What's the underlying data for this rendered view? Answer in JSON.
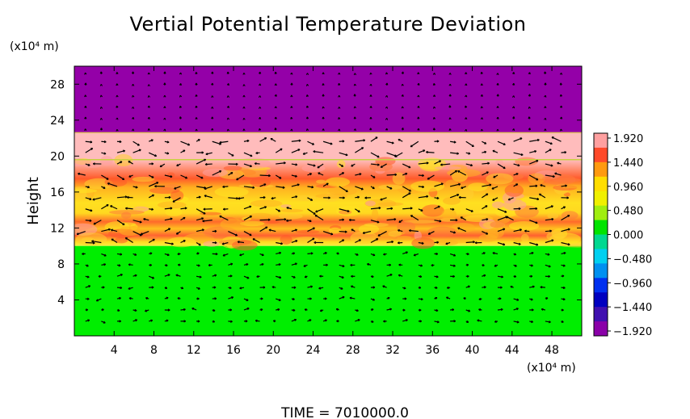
{
  "chart_data": {
    "type": "heatmap",
    "title": "Vertial Potential Temperature Deviation",
    "xlabel": "(x10⁴ m)",
    "ylabel": "Height",
    "y_unit_label": "(x10⁴ m)",
    "xlim": [
      0,
      51
    ],
    "ylim": [
      0,
      30
    ],
    "x_ticks": [
      "4",
      "8",
      "12",
      "16",
      "20",
      "24",
      "28",
      "32",
      "36",
      "40",
      "44",
      "48"
    ],
    "x_tick_values": [
      4,
      8,
      12,
      16,
      20,
      24,
      28,
      32,
      36,
      40,
      44,
      48
    ],
    "y_ticks": [
      "4",
      "8",
      "12",
      "16",
      "20",
      "24",
      "28"
    ],
    "y_tick_values": [
      4,
      8,
      12,
      16,
      20,
      24,
      28
    ],
    "colorbar": {
      "labels": [
        "1.920",
        "1.440",
        "0.960",
        "0.480",
        "0.000",
        "−0.480",
        "−0.960",
        "−1.440",
        "−1.920"
      ],
      "values": [
        1.92,
        1.44,
        0.96,
        0.48,
        0.0,
        -0.48,
        -0.96,
        -1.44,
        -1.92
      ],
      "colors": [
        "#ffa0a0",
        "#ff4a2a",
        "#ff9a10",
        "#ffdd00",
        "#f0f000",
        "#a0ee10",
        "#00e400",
        "#00d890",
        "#00d0f0",
        "#0090f0",
        "#0030f0",
        "#0000c0",
        "#4010b0",
        "#8a00a8"
      ]
    },
    "layers": [
      {
        "region": "upper layer",
        "y_range": [
          22.6,
          30
        ],
        "value": -1.92,
        "color": "#9400a8"
      },
      {
        "region": "pink band",
        "y_range": [
          19.6,
          22.6
        ],
        "value": 1.92,
        "color": "#ffbcbc"
      },
      {
        "region": "mixed band",
        "y_range": [
          10.0,
          19.6
        ],
        "value_range": [
          0.5,
          1.9
        ],
        "color": "#ffdd20"
      },
      {
        "region": "lower layer",
        "y_range": [
          0,
          10.0
        ],
        "value": 0.0,
        "color": "#00ee00"
      }
    ],
    "grid": false,
    "overlay": "velocity vector arrows"
  },
  "footer": {
    "time_label": "TIME  =  7010000.0"
  }
}
